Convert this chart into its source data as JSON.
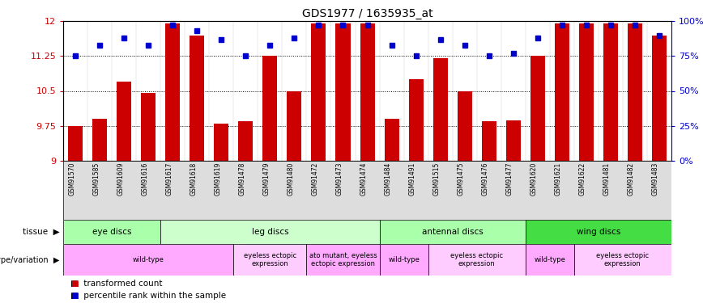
{
  "title": "GDS1977 / 1635935_at",
  "samples": [
    "GSM91570",
    "GSM91585",
    "GSM91609",
    "GSM91616",
    "GSM91617",
    "GSM91618",
    "GSM91619",
    "GSM91478",
    "GSM91479",
    "GSM91480",
    "GSM91472",
    "GSM91473",
    "GSM91474",
    "GSM91484",
    "GSM91491",
    "GSM91515",
    "GSM91475",
    "GSM91476",
    "GSM91477",
    "GSM91620",
    "GSM91621",
    "GSM91622",
    "GSM91481",
    "GSM91482",
    "GSM91483"
  ],
  "bar_values": [
    9.75,
    9.9,
    10.7,
    10.45,
    11.95,
    11.7,
    9.8,
    9.85,
    11.25,
    10.5,
    11.95,
    11.95,
    11.95,
    9.9,
    10.75,
    11.2,
    10.5,
    9.85,
    9.87,
    11.25,
    11.95,
    11.95,
    11.95,
    11.95,
    11.7
  ],
  "dot_values": [
    75,
    83,
    88,
    83,
    97,
    93,
    87,
    75,
    83,
    88,
    97,
    97,
    97,
    83,
    75,
    87,
    83,
    75,
    77,
    88,
    97,
    97,
    97,
    97,
    90
  ],
  "ylim_left": [
    9,
    12
  ],
  "ylim_right": [
    0,
    100
  ],
  "yticks_left": [
    9,
    9.75,
    10.5,
    11.25,
    12
  ],
  "yticks_right": [
    0,
    25,
    50,
    75,
    100
  ],
  "ytick_labels_left": [
    "9",
    "9.75",
    "10.5",
    "11.25",
    "12"
  ],
  "ytick_labels_right": [
    "0%",
    "25%",
    "50%",
    "75%",
    "100%"
  ],
  "bar_color": "#cc0000",
  "dot_color": "#0000cc",
  "tissue_groups": [
    {
      "label": "eye discs",
      "start": 0,
      "end": 4,
      "color": "#aaffaa"
    },
    {
      "label": "leg discs",
      "start": 4,
      "end": 13,
      "color": "#ccffcc"
    },
    {
      "label": "antennal discs",
      "start": 13,
      "end": 19,
      "color": "#aaffaa"
    },
    {
      "label": "wing discs",
      "start": 19,
      "end": 25,
      "color": "#44dd44"
    }
  ],
  "genotype_groups": [
    {
      "label": "wild-type",
      "start": 0,
      "end": 7,
      "color": "#ffaaff"
    },
    {
      "label": "eyeless ectopic\nexpression",
      "start": 7,
      "end": 10,
      "color": "#ffccff"
    },
    {
      "label": "ato mutant, eyeless\nectopic expression",
      "start": 10,
      "end": 13,
      "color": "#ffaaff"
    },
    {
      "label": "wild-type",
      "start": 13,
      "end": 15,
      "color": "#ffccff"
    },
    {
      "label": "eyeless ectopic\nexpression",
      "start": 15,
      "end": 19,
      "color": "#ffaaff"
    },
    {
      "label": "wild-type",
      "start": 19,
      "end": 21,
      "color": "#ffccff"
    },
    {
      "label": "eyeless ectopic\nexpression",
      "start": 21,
      "end": 25,
      "color": "#ffaaff"
    }
  ],
  "legend_items": [
    {
      "label": "transformed count",
      "color": "#cc0000"
    },
    {
      "label": "percentile rank within the sample",
      "color": "#0000cc"
    }
  ],
  "xtick_bg": "#dddddd",
  "left_label_color": "#444444"
}
